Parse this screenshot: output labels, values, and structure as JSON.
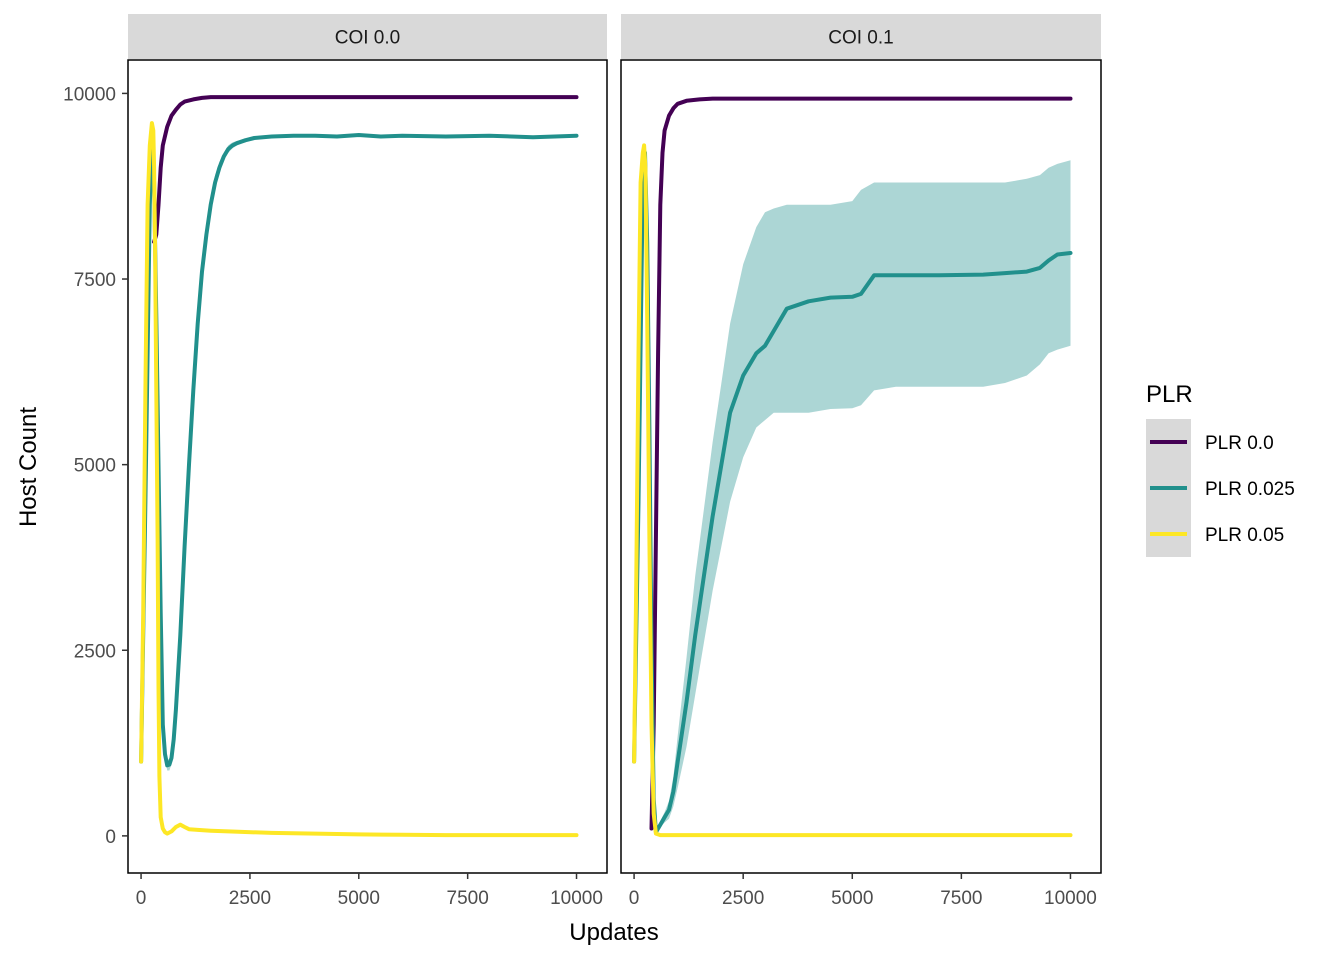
{
  "chart_data": {
    "type": "line",
    "xlabel": "Updates",
    "ylabel": "Host Count",
    "xlim": [
      -300,
      10700
    ],
    "ylim": [
      -500,
      10450
    ],
    "xticks": [
      0,
      2500,
      5000,
      7500,
      10000
    ],
    "xtick_labels": [
      "0",
      "2500",
      "5000",
      "7500",
      "10000"
    ],
    "yticks": [
      0,
      2500,
      5000,
      7500,
      10000
    ],
    "ytick_labels": [
      "0",
      "2500",
      "5000",
      "7500",
      "10000"
    ],
    "legend": {
      "title": "PLR",
      "position": "right",
      "entries": [
        {
          "label": "PLR 0.0",
          "color": "#440154"
        },
        {
          "label": "PLR 0.025",
          "color": "#21908c"
        },
        {
          "label": "PLR 0.05",
          "color": "#fde725"
        }
      ]
    },
    "ribbon_color": "#a8d4d3",
    "panels": [
      {
        "strip_label": "COI 0.0",
        "series": [
          {
            "name": "PLR 0.0",
            "color": "#440154",
            "x": [
              300,
              350,
              400,
              450,
              500,
              600,
              700,
              800,
              900,
              1000,
              1200,
              1400,
              1600,
              2000,
              3000,
              5000,
              7500,
              10000
            ],
            "y": [
              8000,
              8100,
              8500,
              9000,
              9300,
              9550,
              9700,
              9780,
              9850,
              9890,
              9920,
              9940,
              9950,
              9950,
              9950,
              9950,
              9950,
              9950
            ]
          },
          {
            "name": "PLR 0.025",
            "color": "#21908c",
            "x": [
              0,
              100,
              200,
              250,
              300,
              350,
              400,
              450,
              500,
              550,
              600,
              650,
              700,
              750,
              800,
              900,
              1000,
              1100,
              1200,
              1300,
              1400,
              1500,
              1600,
              1700,
              1800,
              1900,
              2000,
              2100,
              2200,
              2300,
              2400,
              2600,
              2800,
              3000,
              3500,
              4000,
              4500,
              5000,
              5500,
              6000,
              7000,
              8000,
              9000,
              10000
            ],
            "y": [
              1000,
              4500,
              8500,
              9400,
              8800,
              7000,
              5000,
              3000,
              1500,
              1100,
              950,
              960,
              1050,
              1300,
              1700,
              2700,
              3900,
              5000,
              6000,
              6900,
              7600,
              8100,
              8500,
              8800,
              9000,
              9150,
              9250,
              9300,
              9330,
              9350,
              9370,
              9400,
              9410,
              9420,
              9430,
              9430,
              9420,
              9440,
              9420,
              9430,
              9420,
              9430,
              9410,
              9430
            ],
            "ribbon_lower": [
              1000,
              4500,
              8500,
              9400,
              8800,
              7000,
              5000,
              3000,
              1500,
              1050,
              880,
              880,
              970,
              1200,
              1600,
              2550,
              3750,
              4850,
              5850,
              6750,
              7450,
              8000,
              8400,
              8700,
              8930,
              9100,
              9200,
              9260,
              9300,
              9330,
              9350,
              9380,
              9400,
              9410,
              9420,
              9420,
              9410,
              9430,
              9410,
              9420,
              9410,
              9420,
              9400,
              9420
            ],
            "ribbon_upper": [
              1000,
              4500,
              8500,
              9400,
              8800,
              7000,
              5000,
              3000,
              1550,
              1150,
              1020,
              1040,
              1130,
              1400,
              1800,
              2850,
              4050,
              5150,
              6150,
              7050,
              7750,
              8250,
              8600,
              8900,
              9080,
              9200,
              9300,
              9340,
              9360,
              9370,
              9390,
              9420,
              9420,
              9430,
              9440,
              9440,
              9430,
              9450,
              9430,
              9440,
              9430,
              9440,
              9420,
              9440
            ]
          },
          {
            "name": "PLR 0.05",
            "color": "#fde725",
            "x": [
              0,
              50,
              100,
              150,
              200,
              250,
              280,
              300,
              320,
              350,
              380,
              400,
              420,
              450,
              500,
              550,
              600,
              700,
              800,
              900,
              1000,
              1100,
              1300,
              1600,
              2000,
              3000,
              4000,
              5000,
              6000,
              7000,
              8000,
              9000,
              10000
            ],
            "y": [
              1000,
              3000,
              6000,
              8500,
              9300,
              9600,
              9500,
              9000,
              8000,
              6000,
              4000,
              2000,
              800,
              250,
              100,
              50,
              30,
              60,
              120,
              150,
              120,
              90,
              80,
              70,
              60,
              40,
              30,
              20,
              15,
              10,
              10,
              10,
              10
            ]
          }
        ]
      },
      {
        "strip_label": "COI 0.1",
        "series": [
          {
            "name": "PLR 0.0",
            "color": "#440154",
            "x": [
              400,
              450,
              500,
              550,
              600,
              650,
              700,
              800,
              900,
              1000,
              1200,
              1500,
              1800,
              2500,
              5000,
              7500,
              10000
            ],
            "y": [
              100,
              1500,
              4000,
              6500,
              8500,
              9200,
              9500,
              9700,
              9800,
              9860,
              9900,
              9920,
              9930,
              9930,
              9930,
              9930,
              9930
            ]
          },
          {
            "name": "PLR 0.025",
            "color": "#21908c",
            "x": [
              0,
              100,
              200,
              250,
              300,
              350,
              400,
              450,
              500,
              600,
              700,
              800,
              900,
              1000,
              1200,
              1400,
              1600,
              1800,
              2000,
              2200,
              2500,
              2800,
              3000,
              3200,
              3500,
              4000,
              4500,
              5000,
              5200,
              5500,
              6000,
              7000,
              8000,
              8500,
              9000,
              9300,
              9500,
              9700,
              10000
            ],
            "y": [
              1000,
              4500,
              8800,
              9200,
              8000,
              5500,
              2500,
              500,
              50,
              150,
              250,
              350,
              600,
              1000,
              1800,
              2700,
              3500,
              4300,
              5000,
              5700,
              6200,
              6500,
              6600,
              6800,
              7100,
              7200,
              7250,
              7260,
              7300,
              7550,
              7550,
              7550,
              7560,
              7580,
              7600,
              7650,
              7750,
              7830,
              7850
            ],
            "ribbon_lower": [
              1000,
              4500,
              8800,
              9200,
              8000,
              5500,
              2500,
              500,
              50,
              120,
              180,
              230,
              400,
              650,
              1200,
              1900,
              2600,
              3300,
              3900,
              4500,
              5100,
              5500,
              5600,
              5700,
              5700,
              5700,
              5750,
              5760,
              5800,
              6000,
              6050,
              6050,
              6050,
              6100,
              6200,
              6350,
              6500,
              6550,
              6600
            ],
            "ribbon_upper": [
              1000,
              4500,
              8800,
              9200,
              8000,
              5500,
              2500,
              500,
              60,
              200,
              320,
              470,
              800,
              1350,
              2400,
              3500,
              4400,
              5300,
              6100,
              6900,
              7700,
              8200,
              8400,
              8450,
              8500,
              8500,
              8500,
              8550,
              8700,
              8800,
              8800,
              8800,
              8800,
              8800,
              8850,
              8900,
              9000,
              9050,
              9100
            ]
          },
          {
            "name": "PLR 0.05",
            "color": "#fde725",
            "x": [
              0,
              50,
              100,
              150,
              200,
              230,
              260,
              300,
              350,
              400,
              450,
              500,
              600,
              1000,
              2000,
              5000,
              7500,
              10000
            ],
            "y": [
              1000,
              3500,
              6500,
              8800,
              9200,
              9300,
              9000,
              7000,
              4000,
              1500,
              300,
              30,
              10,
              10,
              10,
              10,
              10,
              10
            ]
          }
        ]
      }
    ]
  }
}
